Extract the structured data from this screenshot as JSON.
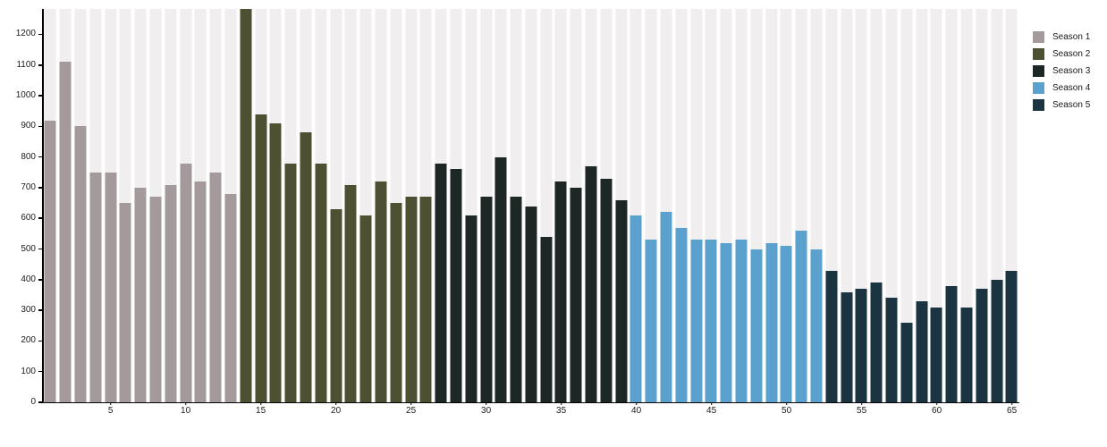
{
  "chart_data": {
    "type": "bar",
    "title": "",
    "xlabel": "",
    "ylabel": "",
    "x_range": [
      1,
      65
    ],
    "ylim": [
      0,
      1283
    ],
    "yticks": [
      0,
      100,
      200,
      300,
      400,
      500,
      600,
      700,
      800,
      900,
      1000,
      1100,
      1200
    ],
    "xticks": [
      5,
      10,
      15,
      20,
      25,
      30,
      35,
      40,
      45,
      50,
      55,
      60,
      65
    ],
    "grid": "off",
    "legend_position": "top-right",
    "background_stripe_color": "#f0eeee",
    "axis_color": "#000000",
    "clipped_note": "bar at episode 14 extends past the top of the y-axis (clipped)",
    "series": [
      {
        "name": "Season 1",
        "color": "#a49a9b",
        "values": [
          920,
          1110,
          900,
          750,
          750,
          650,
          700,
          670,
          710,
          780,
          720,
          750,
          680
        ]
      },
      {
        "name": "Season 2",
        "color": "#4d5132",
        "values": [
          1300,
          940,
          910,
          780,
          880,
          780,
          630,
          710,
          610,
          720,
          650,
          670,
          670
        ]
      },
      {
        "name": "Season 3",
        "color": "#1d2725",
        "values": [
          780,
          760,
          610,
          670,
          800,
          670,
          640,
          540,
          720,
          700,
          770,
          730,
          660
        ]
      },
      {
        "name": "Season 4",
        "color": "#5ba1ce",
        "values": [
          610,
          530,
          620,
          570,
          530,
          530,
          520,
          530,
          500,
          520,
          510,
          560,
          500
        ]
      },
      {
        "name": "Season 5",
        "color": "#1a3441",
        "values": [
          430,
          360,
          370,
          390,
          340,
          260,
          330,
          310,
          380,
          310,
          370,
          400,
          430
        ]
      }
    ]
  }
}
